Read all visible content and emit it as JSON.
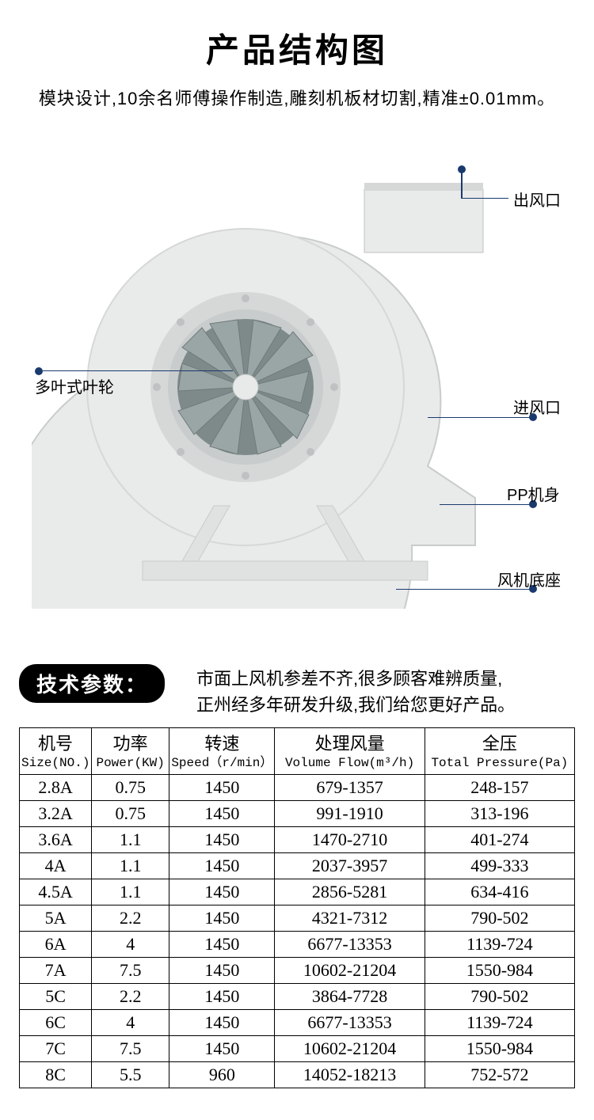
{
  "header": {
    "title": "产品结构图",
    "subtitle": "模块设计,10余名师傅操作制造,雕刻机板材切割,精准±0.01mm。"
  },
  "callouts": {
    "outlet": "出风口",
    "impeller": "多叶式叶轮",
    "inlet": "进风口",
    "body": "PP机身",
    "base": "风机底座"
  },
  "colors": {
    "accent": "#1a3a6e",
    "casing": "#e9eaea",
    "casing_shade": "#d6d8d8",
    "hub": "#c9cccc",
    "impeller_disc": "#7e8a8a",
    "impeller_blade": "#9aa5a5",
    "stand": "#dfe2e0"
  },
  "spec_section": {
    "pill": "技术参数：",
    "desc_line1": "市面上风机参差不齐,很多顾客难辨质量,",
    "desc_line2": "正州经多年研发升级,我们给您更好产品。"
  },
  "spec_table": {
    "columns": [
      {
        "cn": "机号",
        "en": "Size(NO.)"
      },
      {
        "cn": "功率",
        "en": "Power(KW)"
      },
      {
        "cn": "转速",
        "en": "Speed（r/min）"
      },
      {
        "cn": "处理风量",
        "en": "Volume Flow(m³/h)"
      },
      {
        "cn": "全压",
        "en": "Total Pressure(Pa)"
      }
    ],
    "rows": [
      [
        "2.8A",
        "0.75",
        "1450",
        "679-1357",
        "248-157"
      ],
      [
        "3.2A",
        "0.75",
        "1450",
        "991-1910",
        "313-196"
      ],
      [
        "3.6A",
        "1.1",
        "1450",
        "1470-2710",
        "401-274"
      ],
      [
        "4A",
        "1.1",
        "1450",
        "2037-3957",
        "499-333"
      ],
      [
        "4.5A",
        "1.1",
        "1450",
        "2856-5281",
        "634-416"
      ],
      [
        "5A",
        "2.2",
        "1450",
        "4321-7312",
        "790-502"
      ],
      [
        "6A",
        "4",
        "1450",
        "6677-13353",
        "1139-724"
      ],
      [
        "7A",
        "7.5",
        "1450",
        "10602-21204",
        "1550-984"
      ],
      [
        "5C",
        "2.2",
        "1450",
        "3864-7728",
        "790-502"
      ],
      [
        "6C",
        "4",
        "1450",
        "6677-13353",
        "1139-724"
      ],
      [
        "7C",
        "7.5",
        "1450",
        "10602-21204",
        "1550-984"
      ],
      [
        "8C",
        "5.5",
        "960",
        "14052-18213",
        "752-572"
      ]
    ]
  }
}
